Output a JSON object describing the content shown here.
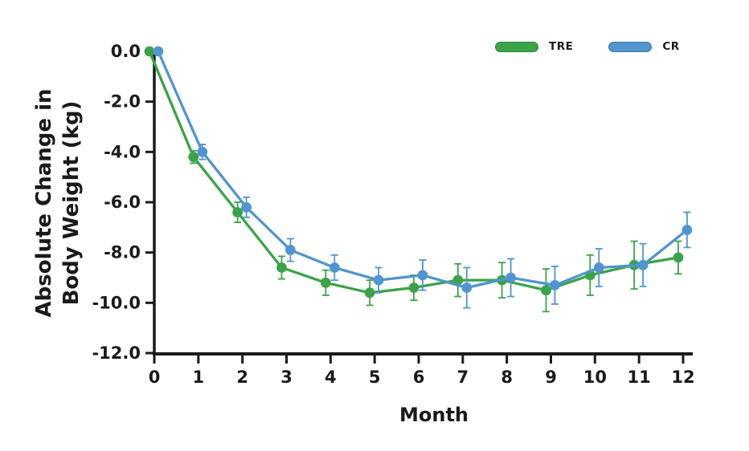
{
  "chart_data": {
    "type": "line",
    "title": "",
    "xlabel": "Month",
    "ylabel_line1": "Absolute Change in",
    "ylabel_line2": "Body Weight (kg)",
    "x": [
      0,
      1,
      2,
      3,
      4,
      5,
      6,
      7,
      8,
      9,
      10,
      11,
      12
    ],
    "x_tick_labels": [
      "0",
      "1",
      "2",
      "3",
      "4",
      "5",
      "6",
      "7",
      "8",
      "9",
      "10",
      "11",
      "12"
    ],
    "xlim": [
      0,
      12
    ],
    "ylim": [
      -12,
      0
    ],
    "y_ticks": [
      0,
      -2,
      -4,
      -6,
      -8,
      -10,
      -12
    ],
    "y_tick_labels": [
      "0.0",
      "-2.0",
      "-4.0",
      "-6.0",
      "-8.0",
      "-10.0",
      "-12.0"
    ],
    "grid": false,
    "legend_position": "top-right",
    "error_bars": true,
    "axis_color": "#1a1a1a",
    "series": [
      {
        "name": "TRE",
        "color": "#3aa348",
        "x_offset_months": -0.11,
        "values": [
          0.0,
          -4.2,
          -6.4,
          -8.6,
          -9.2,
          -9.6,
          -9.4,
          -9.1,
          -9.1,
          -9.5,
          -8.9,
          -8.5,
          -8.2
        ],
        "errors": [
          0,
          0.25,
          0.4,
          0.45,
          0.5,
          0.5,
          0.5,
          0.65,
          0.7,
          0.85,
          0.8,
          0.95,
          0.65
        ]
      },
      {
        "name": "CR",
        "color": "#5095d0",
        "x_offset_months": 0.09,
        "values": [
          0.0,
          -4.0,
          -6.2,
          -7.9,
          -8.6,
          -9.1,
          -8.9,
          -9.4,
          -9.0,
          -9.3,
          -8.6,
          -8.5,
          -7.1
        ],
        "errors": [
          0,
          0.3,
          0.4,
          0.45,
          0.5,
          0.5,
          0.6,
          0.8,
          0.75,
          0.75,
          0.75,
          0.85,
          0.7
        ]
      }
    ]
  }
}
